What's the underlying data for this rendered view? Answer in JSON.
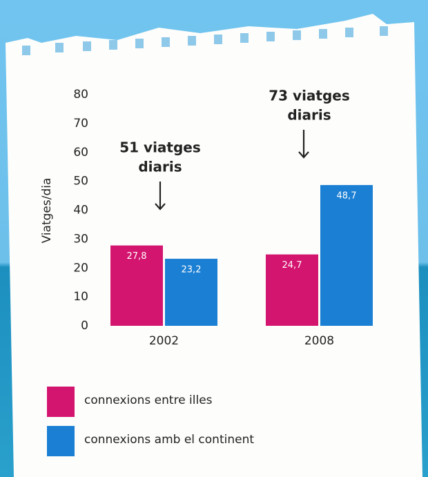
{
  "chart_data": {
    "type": "bar",
    "y_label": "Viatges/dia",
    "categories": [
      "2002",
      "2008"
    ],
    "series": [
      {
        "name": "connexions entre illes",
        "color": "#d4156f",
        "values": [
          27.8,
          24.7
        ],
        "value_labels": [
          "27,8",
          "24,7"
        ]
      },
      {
        "name": "connexions amb el continent",
        "color": "#1b7fd3",
        "values": [
          23.2,
          48.7
        ],
        "value_labels": [
          "23,2",
          "48,7"
        ]
      }
    ],
    "ylim": [
      0,
      80
    ],
    "yticks": [
      0,
      10,
      20,
      30,
      40,
      50,
      60,
      70,
      80
    ],
    "annotations": [
      {
        "lines": [
          "51 viatges",
          "diaris"
        ]
      },
      {
        "lines": [
          "73 viatges",
          "diaris"
        ]
      }
    ]
  }
}
